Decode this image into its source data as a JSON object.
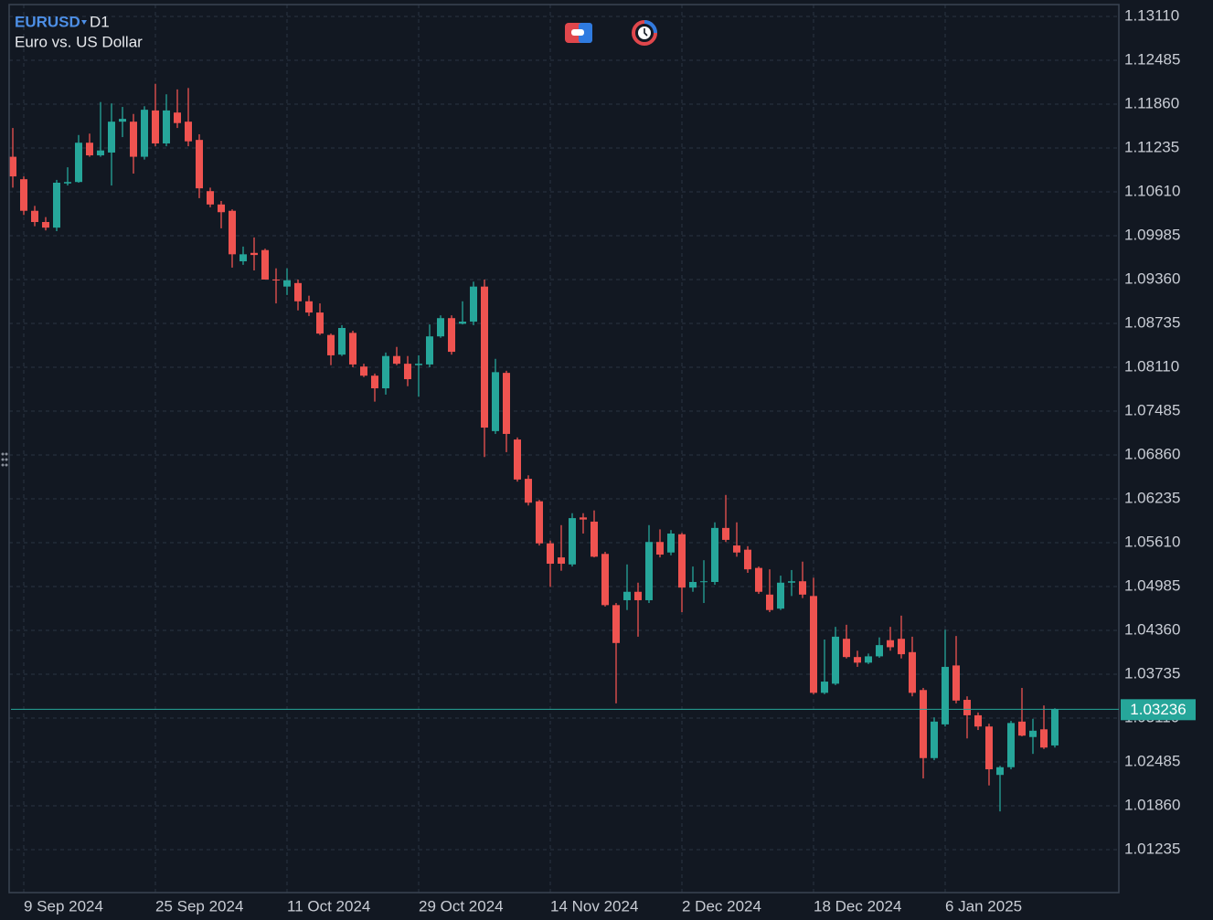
{
  "chart_data": {
    "type": "candlestick",
    "symbol": "EURUSD",
    "timeframe": "D1",
    "subtitle": "Euro vs. US Dollar",
    "up_color": "#26a69a",
    "down_color": "#ef5350",
    "grid": true,
    "categories": [
      null,
      "9 Sep 2024",
      null,
      null,
      null,
      null,
      null,
      null,
      null,
      null,
      null,
      null,
      null,
      "25 Sep 2024",
      null,
      null,
      null,
      null,
      null,
      null,
      null,
      null,
      null,
      null,
      null,
      "11 Oct 2024",
      null,
      null,
      null,
      null,
      null,
      null,
      null,
      null,
      null,
      null,
      null,
      "29 Oct 2024",
      null,
      null,
      null,
      null,
      null,
      null,
      null,
      null,
      null,
      null,
      null,
      "14 Nov 2024",
      null,
      null,
      null,
      null,
      null,
      null,
      null,
      null,
      null,
      null,
      null,
      "2 Dec 2024",
      null,
      null,
      null,
      null,
      null,
      null,
      null,
      null,
      null,
      null,
      null,
      "18 Dec 2024",
      null,
      null,
      null,
      null,
      null,
      null,
      null,
      null,
      null,
      null,
      null,
      "6 Jan 2025",
      null,
      null,
      null,
      null,
      null,
      null,
      null,
      null,
      null,
      null
    ],
    "open": [
      1.1111,
      1.1079,
      1.1034,
      1.1018,
      1.101,
      1.1073,
      1.1075,
      1.1131,
      1.1113,
      1.1117,
      1.1161,
      1.1161,
      1.1111,
      1.1177,
      1.113,
      1.1174,
      1.1161,
      1.1135,
      1.1062,
      1.1043,
      1.1034,
      1.0962,
      1.0974,
      1.0978,
      1.0936,
      1.0926,
      1.0931,
      1.0905,
      1.0889,
      1.0857,
      1.0829,
      1.086,
      1.0812,
      1.0799,
      1.0781,
      1.0827,
      1.0816,
      1.0814,
      1.0815,
      1.0855,
      1.0881,
      1.0873,
      1.0876,
      1.0926,
      1.072,
      1.0803,
      1.0708,
      1.0652,
      1.062,
      1.056,
      1.054,
      1.053,
      1.0597,
      1.0591,
      1.0545,
      1.0472,
      1.0479,
      1.0491,
      1.0479,
      1.0562,
      1.0547,
      1.0573,
      1.0497,
      1.0505,
      1.0505,
      1.0582,
      1.0557,
      1.0551,
      1.0525,
      1.0487,
      1.0467,
      1.0504,
      1.0506,
      1.0485,
      1.0347,
      1.036,
      1.0424,
      1.0398,
      1.039,
      1.0399,
      1.0422,
      1.0424,
      1.0405,
      1.0351,
      1.0254,
      1.0302,
      1.0386,
      1.0337,
      1.0315,
      1.0299,
      1.023,
      1.0241,
      1.0306,
      1.0284,
      1.0295,
      1.0272
    ],
    "high": [
      1.1152,
      1.1083,
      1.1041,
      1.1025,
      1.1078,
      1.1096,
      1.1142,
      1.1144,
      1.1189,
      1.1187,
      1.1182,
      1.1172,
      1.1183,
      1.1215,
      1.12,
      1.1207,
      1.1209,
      1.1143,
      1.1067,
      1.1048,
      1.1036,
      1.0983,
      1.0996,
      1.098,
      1.0952,
      1.0952,
      1.0936,
      1.0913,
      1.0902,
      1.0859,
      1.0871,
      1.0863,
      1.0816,
      1.0802,
      1.0832,
      1.084,
      1.0827,
      1.0828,
      1.0872,
      1.0885,
      1.0885,
      1.0905,
      1.0933,
      1.0936,
      1.0823,
      1.0806,
      1.0711,
      1.0657,
      1.0622,
      1.0564,
      1.0586,
      1.0603,
      1.0603,
      1.0607,
      1.0548,
      1.0475,
      1.053,
      1.0504,
      1.0586,
      1.058,
      1.0579,
      1.0575,
      1.0527,
      1.0536,
      1.059,
      1.0629,
      1.059,
      1.0556,
      1.0527,
      1.0523,
      1.0514,
      1.0522,
      1.0534,
      1.0511,
      1.0423,
      1.0441,
      1.0444,
      1.0407,
      1.0403,
      1.0426,
      1.0441,
      1.0457,
      1.0427,
      1.0354,
      1.0312,
      1.0437,
      1.0428,
      1.0342,
      1.0319,
      1.0303,
      1.0243,
      1.0307,
      1.0354,
      1.031,
      1.0329,
      1.0325
    ],
    "low": [
      1.1067,
      1.1028,
      1.1012,
      1.1006,
      1.1005,
      1.107,
      1.1074,
      1.1111,
      1.1111,
      1.107,
      1.1139,
      1.1087,
      1.1107,
      1.1126,
      1.1126,
      1.1152,
      1.1126,
      1.1052,
      1.1039,
      1.1009,
      1.0953,
      1.0957,
      1.0949,
      1.0936,
      1.0902,
      1.0914,
      1.0892,
      1.0884,
      1.0857,
      1.0814,
      1.0827,
      1.0811,
      1.0797,
      1.0762,
      1.0772,
      1.0814,
      1.0784,
      1.0769,
      1.0811,
      1.0853,
      1.0829,
      1.0872,
      1.0871,
      1.0683,
      1.0716,
      1.069,
      1.0648,
      1.0614,
      1.0557,
      1.0498,
      1.0521,
      1.0527,
      1.0574,
      1.054,
      1.047,
      1.0332,
      1.0465,
      1.0427,
      1.0475,
      1.054,
      1.0543,
      1.0462,
      1.0491,
      1.0475,
      1.0501,
      1.0562,
      1.0541,
      1.0518,
      1.0488,
      1.0462,
      1.0465,
      1.0485,
      1.0482,
      1.0345,
      1.0345,
      1.0358,
      1.0396,
      1.0384,
      1.0388,
      1.0397,
      1.0407,
      1.0396,
      1.0342,
      1.0225,
      1.0251,
      1.0299,
      1.0332,
      1.0282,
      1.0294,
      1.0215,
      1.0178,
      1.0238,
      1.0285,
      1.026,
      1.0267,
      1.0269
    ],
    "close": [
      1.1083,
      1.1034,
      1.1018,
      1.101,
      1.1074,
      1.1075,
      1.1131,
      1.1113,
      1.112,
      1.1161,
      1.1165,
      1.1111,
      1.1178,
      1.113,
      1.1177,
      1.1159,
      1.1133,
      1.1066,
      1.1043,
      1.1032,
      1.0972,
      1.0972,
      1.0971,
      1.0936,
      1.0935,
      1.0935,
      1.0905,
      1.0889,
      1.0859,
      1.0828,
      1.0867,
      1.0815,
      1.0799,
      1.0781,
      1.0827,
      1.0816,
      1.0794,
      1.0816,
      1.0855,
      1.0881,
      1.0833,
      1.0876,
      1.0926,
      1.0725,
      1.0804,
      1.0716,
      1.0651,
      1.0618,
      1.056,
      1.0531,
      1.0531,
      1.0596,
      1.0594,
      1.0541,
      1.0472,
      1.0418,
      1.0491,
      1.0479,
      1.0562,
      1.0544,
      1.0574,
      1.0497,
      1.0505,
      1.0506,
      1.0582,
      1.0565,
      1.0547,
      1.0523,
      1.0491,
      1.0465,
      1.0504,
      1.0506,
      1.0487,
      1.0347,
      1.0363,
      1.0427,
      1.0398,
      1.039,
      1.0399,
      1.0415,
      1.0412,
      1.0402,
      1.0347,
      1.0254,
      1.0306,
      1.0384,
      1.0336,
      1.0315,
      1.0299,
      1.0238,
      1.0241,
      1.0304,
      1.0286,
      1.0293,
      1.0269,
      1.03236
    ],
    "last_price": 1.03236,
    "ylim": [
      1.00623,
      1.13279
    ],
    "yticks": [
      {
        "value": 1.1311,
        "label": "1.13110"
      },
      1.12485,
      {
        "value": 1.1186,
        "label": "1.11860"
      },
      1.11235,
      {
        "value": 1.1061,
        "label": "1.10610"
      },
      1.09985,
      {
        "value": 1.0936,
        "label": "1.09360"
      },
      1.08735,
      {
        "value": 1.0811,
        "label": "1.08110"
      },
      1.07485,
      {
        "value": 1.0686,
        "label": "1.06860"
      },
      1.06235,
      {
        "value": 1.0561,
        "label": "1.05610"
      },
      1.04985,
      {
        "value": 1.0436,
        "label": "1.04360"
      },
      1.03735,
      {
        "value": 1.0311,
        "label": "1.03110"
      },
      1.02485,
      {
        "value": 1.0186,
        "label": "1.01860"
      },
      1.01235
    ]
  }
}
